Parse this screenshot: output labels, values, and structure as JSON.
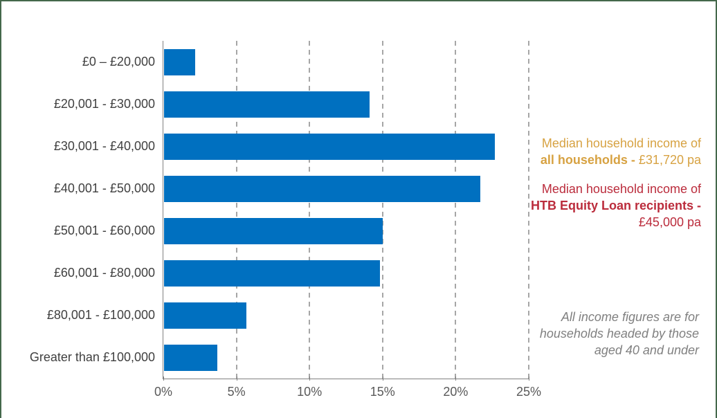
{
  "colors": {
    "frame_border": "#45684B",
    "bar_blue": "#0070C0",
    "grid_gray": "#A6A6A6",
    "axis_gray": "#808080",
    "gold": "#D7A242",
    "red": "#BB2C3C",
    "note_gray": "#808080"
  },
  "chart_data": {
    "type": "bar",
    "orientation": "horizontal",
    "title": "",
    "xlabel": "",
    "ylabel": "",
    "categories": [
      "£0 – £20,000",
      "£20,001 - £30,000",
      "£30,001 - £40,000",
      "£40,001 - £50,000",
      "£50,001 - £60,000",
      "£60,001 - £80,000",
      "£80,001 - £100,000",
      "Greater than £100,000"
    ],
    "values": [
      2.2,
      14.1,
      22.7,
      21.7,
      15.0,
      14.8,
      5.7,
      3.7
    ],
    "value_unit": "%",
    "xlim": [
      0,
      25
    ],
    "x_tick_values": [
      0,
      5,
      10,
      15,
      20,
      25
    ],
    "x_tick_labels": [
      "0%",
      "5%",
      "10%",
      "15%",
      "20%",
      "25%"
    ],
    "gridlines": "vertical dashed at each 5% interval",
    "legend": "none"
  },
  "annotations": {
    "all_households": {
      "line1": "Median household income of",
      "line2_bold": "all households - ",
      "line2_regular": "£31,720 pa",
      "color": "#D7A242"
    },
    "htb_recipients": {
      "line1": "Median household income of",
      "line2_bold": "HTB Equity Loan recipients -",
      "line3": "£45,000 pa",
      "color": "#BB2C3C"
    },
    "note": {
      "lines": [
        "All income figures are for",
        "households headed by those",
        "aged 40 and under"
      ],
      "color": "#808080"
    }
  }
}
